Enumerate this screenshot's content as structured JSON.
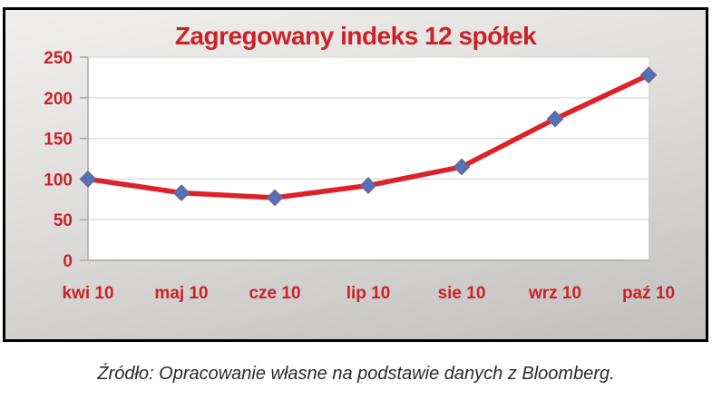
{
  "chart_data": {
    "type": "line",
    "title": "Zagregowany indeks 12 spółek",
    "categories": [
      "kwi 10",
      "maj 10",
      "cze 10",
      "lip 10",
      "sie 10",
      "wrz 10",
      "paź 10"
    ],
    "values": [
      100,
      83,
      77,
      92,
      115,
      174,
      228
    ],
    "series_name": "Zagregowany indeks 12 spółek",
    "xlabel": "",
    "ylabel": "",
    "ylim": [
      0,
      250
    ],
    "ytick_step": 50,
    "yticks": [
      0,
      50,
      100,
      150,
      200,
      250
    ],
    "grid": true,
    "legend": "none",
    "marker": "diamond",
    "source_note": "Źródło: Opracowanie własne na podstawie danych z Bloomberg."
  },
  "colors": {
    "text_red": "#cc2127",
    "line_red": "#dd2127",
    "marker_fill": "#4f74b8",
    "marker_stroke": "#6c6498",
    "grid_line": "#d9d9d9",
    "axis_line": "#a6a6a6",
    "plot_background": "#ffffff",
    "frame_border": "#000000",
    "frame_bg_top": "#f0efee",
    "frame_bg_bottom": "#c1c0be",
    "footer_text": "#2b2b2b"
  }
}
